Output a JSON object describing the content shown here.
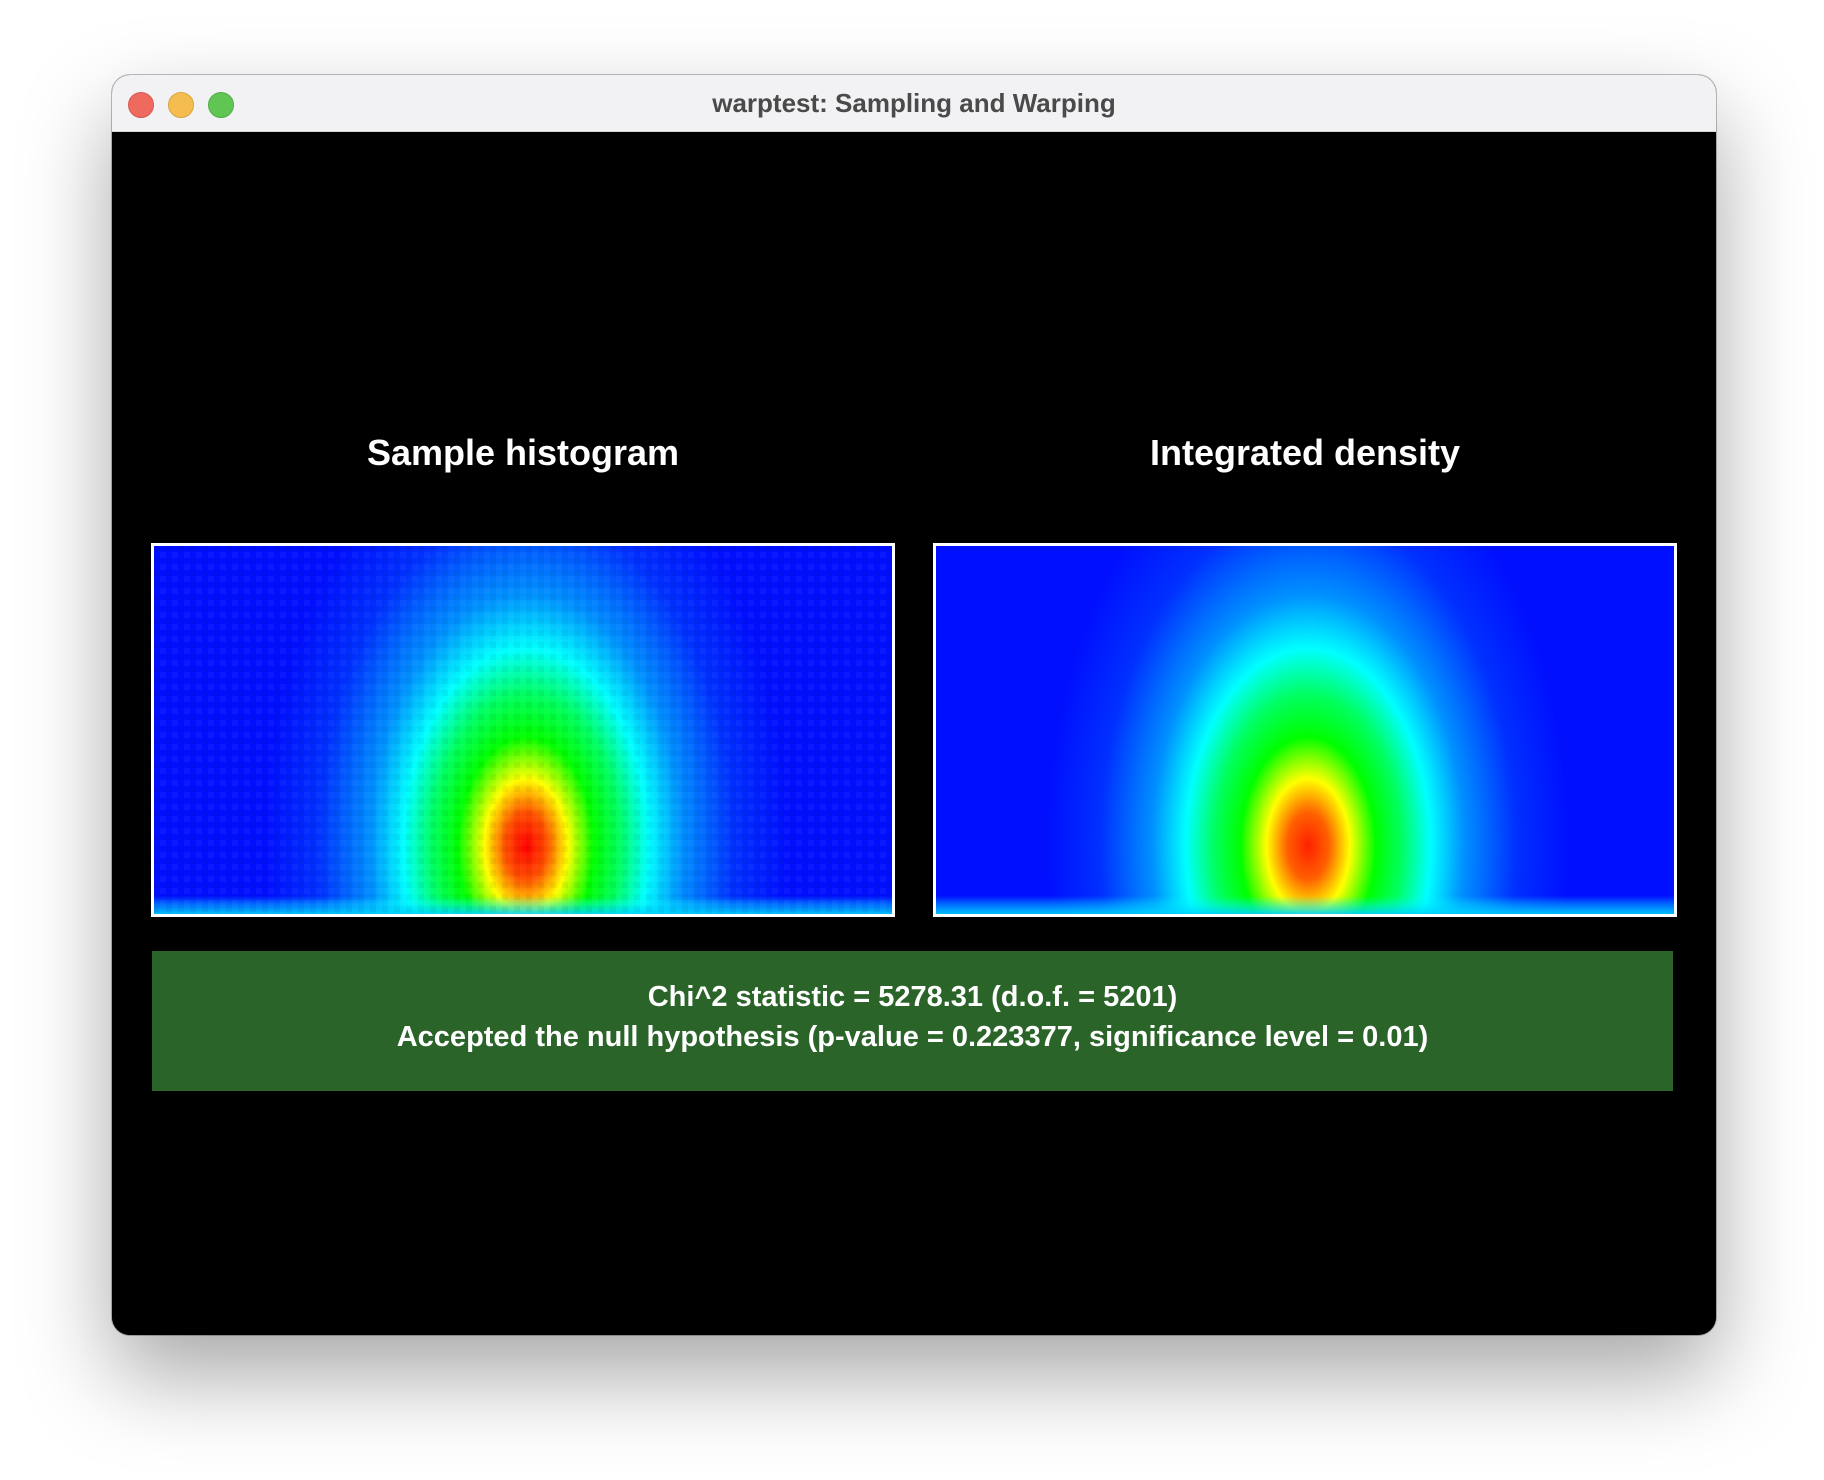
{
  "window": {
    "title": "warptest: Sampling and Warping"
  },
  "panels": {
    "left_title": "Sample histogram",
    "right_title": "Integrated density"
  },
  "result": {
    "line1": "Chi^2 statistic = 5278.31 (d.o.f. = 5201)",
    "line2": "Accepted the null hypothesis (p-value = 0.223377, significance level = 0.01)",
    "status": "accepted",
    "background_color": "#2a6429"
  },
  "colors": {
    "colormap_low": "#0010ff",
    "colormap_mid_low": "#00ffff",
    "colormap_mid": "#00ff00",
    "colormap_mid_high": "#ffff00",
    "colormap_high": "#ff0000"
  }
}
